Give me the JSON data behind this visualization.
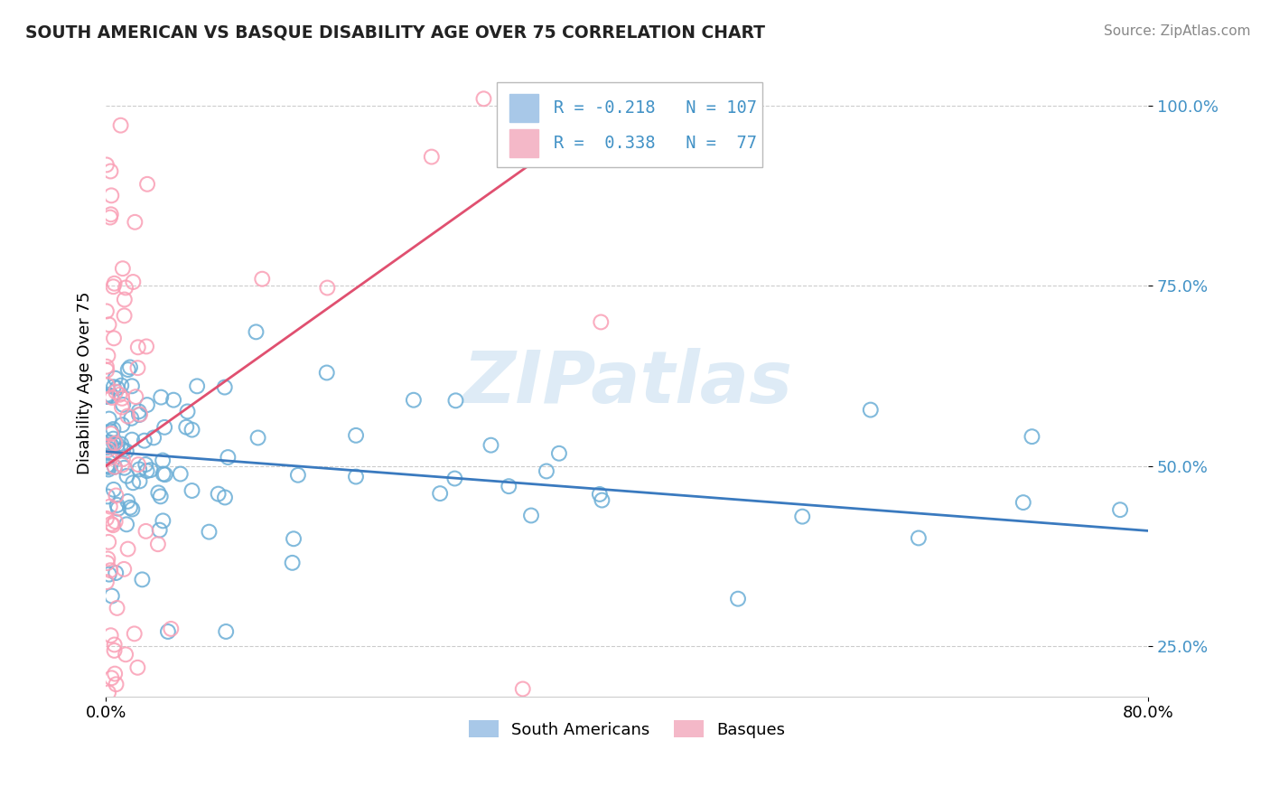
{
  "title": "SOUTH AMERICAN VS BASQUE DISABILITY AGE OVER 75 CORRELATION CHART",
  "source": "Source: ZipAtlas.com",
  "ylabel": "Disability Age Over 75",
  "xlim": [
    0.0,
    0.8
  ],
  "ylim": [
    0.18,
    1.05
  ],
  "yticks": [
    0.25,
    0.5,
    0.75,
    1.0
  ],
  "yticklabels": [
    "25.0%",
    "50.0%",
    "75.0%",
    "100.0%"
  ],
  "blue_scatter_color": "#6baed6",
  "pink_scatter_color": "#fa9fb5",
  "blue_line_color": "#3a7abf",
  "pink_line_color": "#e05070",
  "legend_blue_fill": "#a8c8e8",
  "legend_pink_fill": "#f4b8c8",
  "legend_blue_R": "-0.218",
  "legend_blue_N": "107",
  "legend_pink_R": "0.338",
  "legend_pink_N": "77",
  "watermark": "ZIPatlas",
  "background_color": "#ffffff",
  "grid_color": "#cccccc",
  "ytick_color": "#4292c6",
  "title_color": "#222222",
  "source_color": "#888888"
}
